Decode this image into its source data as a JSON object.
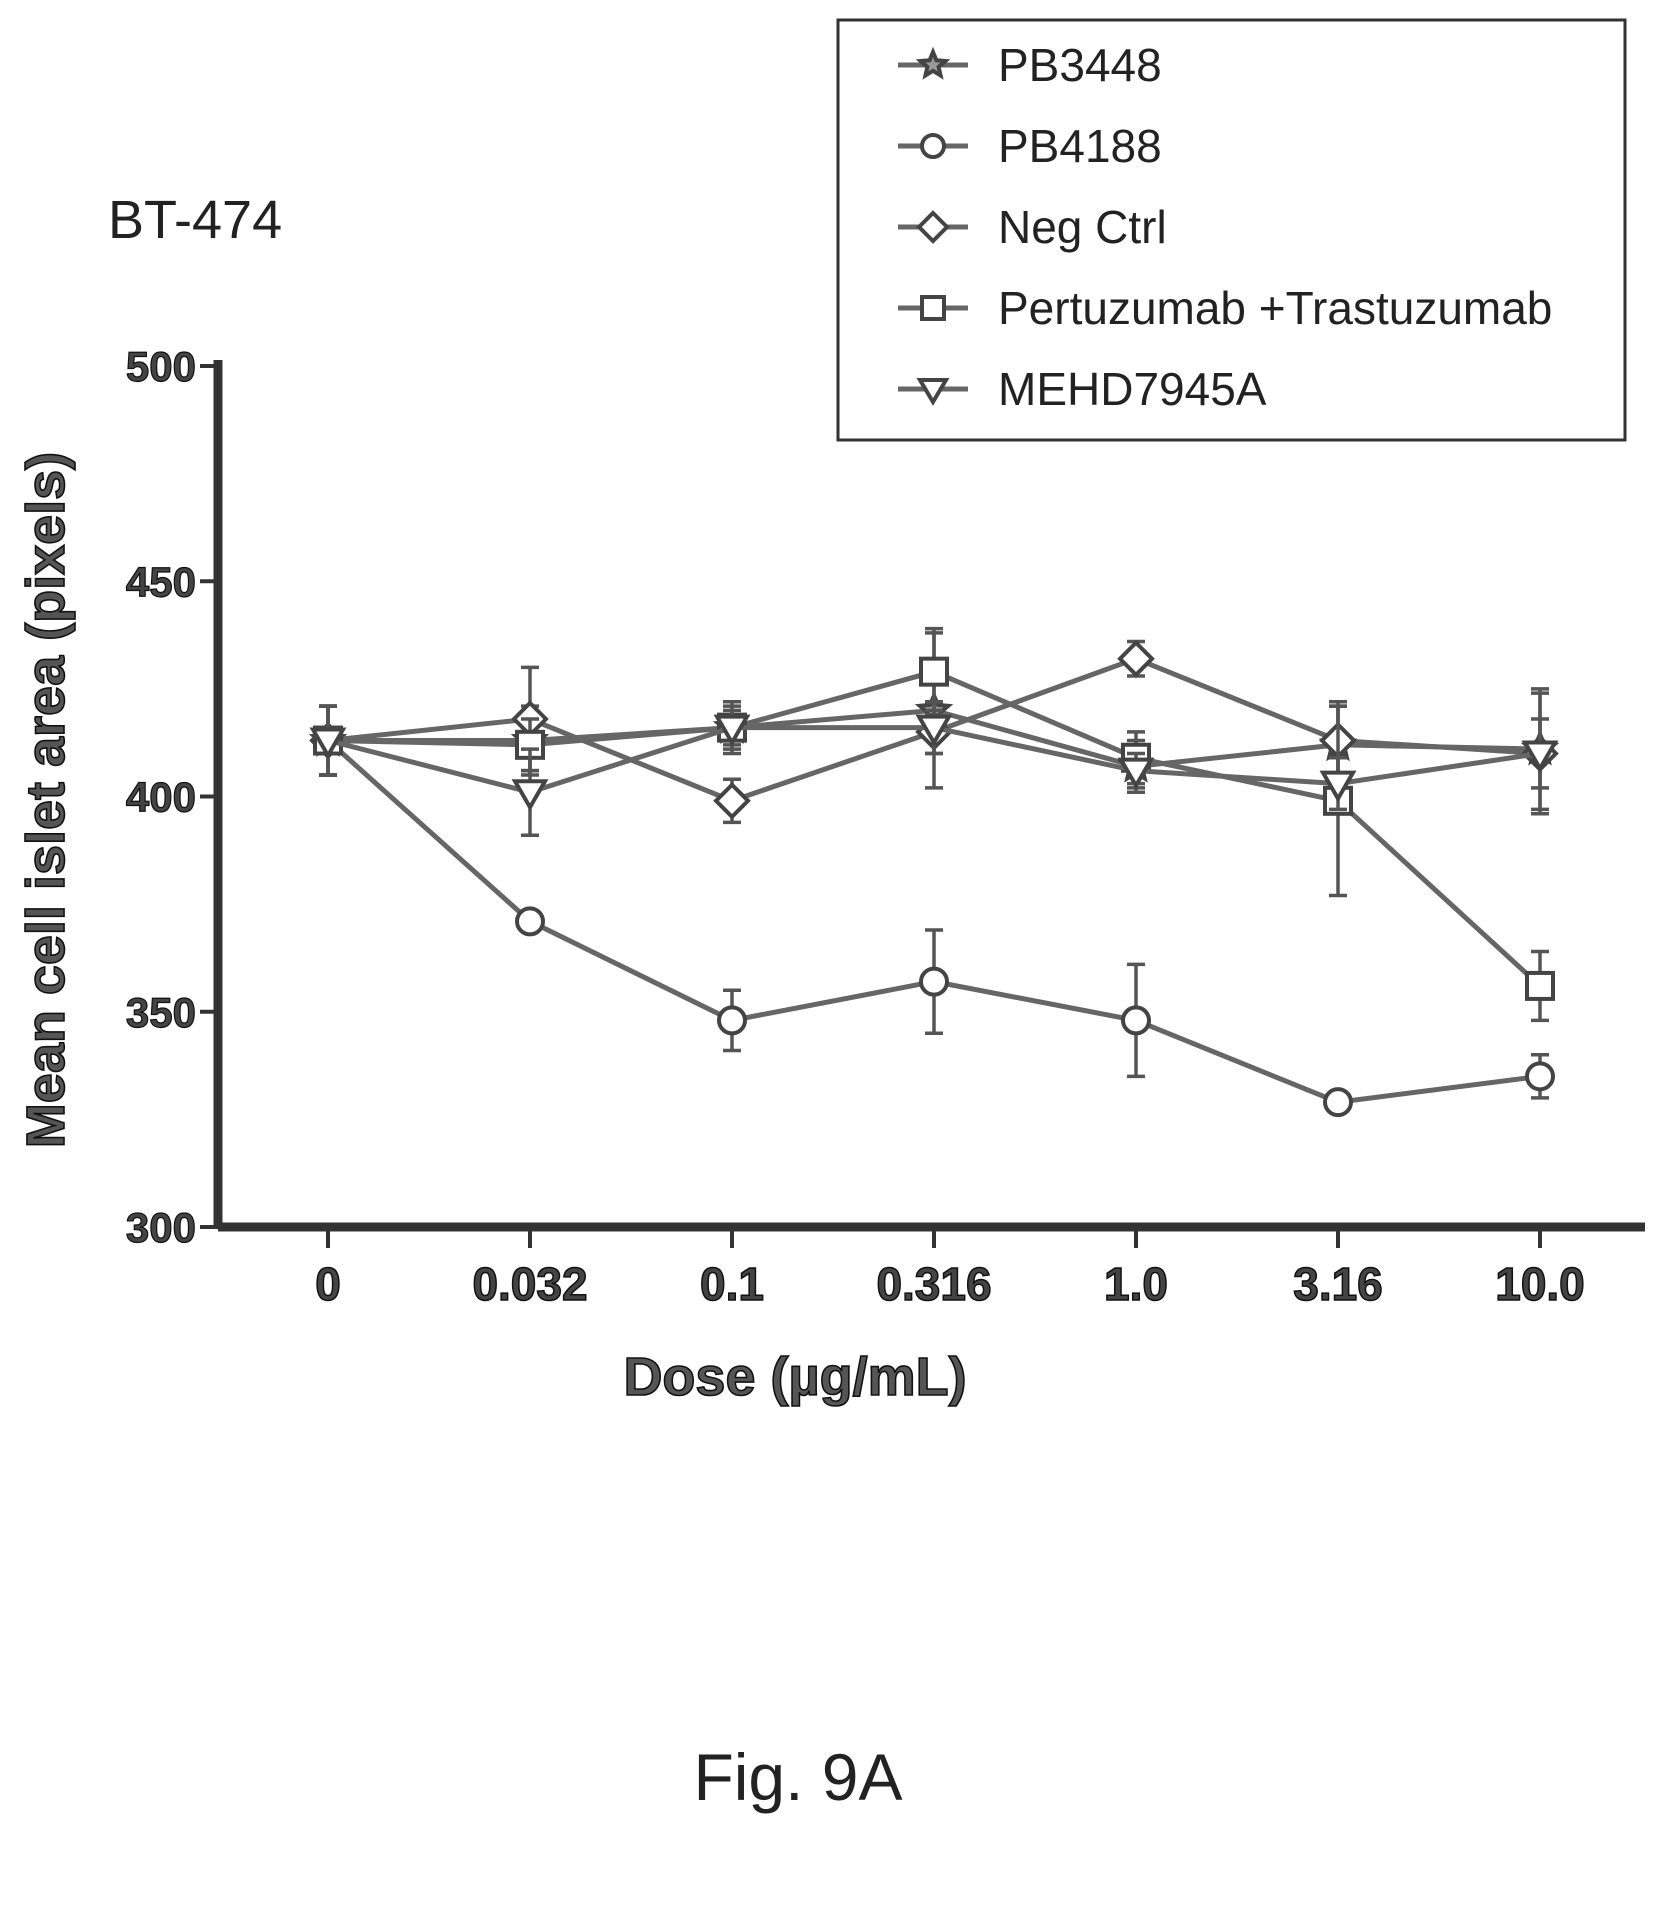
{
  "panel_label": "BT-474",
  "figure_caption": "Fig. 9A",
  "chart_data": {
    "type": "line",
    "title": "",
    "xlabel": "Dose (µg/mL)",
    "ylabel": "Mean cell islet area  (pixels)",
    "categories": [
      "0",
      "0.032",
      "0.1",
      "0.316",
      "1.0",
      "3.16",
      "10.0"
    ],
    "ylim": [
      300,
      500
    ],
    "yticks": [
      300,
      350,
      400,
      450,
      500
    ],
    "grid": false,
    "legend_position": "top-right",
    "series": [
      {
        "name": "PB3448",
        "marker": "star",
        "values": [
          413,
          413,
          416,
          420,
          407,
          412,
          411
        ],
        "errors": [
          8,
          8,
          6,
          18,
          6,
          10,
          14
        ]
      },
      {
        "name": "PB4188",
        "marker": "circle",
        "values": [
          413,
          371,
          348,
          357,
          348,
          329,
          335
        ],
        "errors": [
          8,
          2,
          7,
          12,
          13,
          2,
          5
        ]
      },
      {
        "name": "Neg Ctrl",
        "marker": "diamond",
        "values": [
          413,
          418,
          399,
          415,
          432,
          413,
          410
        ],
        "errors": [
          8,
          12,
          5,
          5,
          4,
          8,
          14
        ]
      },
      {
        "name": "Pertuzumab +Trastuzumab",
        "marker": "square",
        "values": [
          413,
          412,
          416,
          429,
          409,
          399,
          356
        ],
        "errors": [
          8,
          6,
          5,
          10,
          6,
          22,
          8
        ]
      },
      {
        "name": "MEHD7945A",
        "marker": "triangle-down",
        "values": [
          413,
          401,
          416,
          416,
          406,
          403,
          410
        ],
        "errors": [
          8,
          10,
          4,
          6,
          4,
          6,
          8
        ]
      }
    ]
  }
}
